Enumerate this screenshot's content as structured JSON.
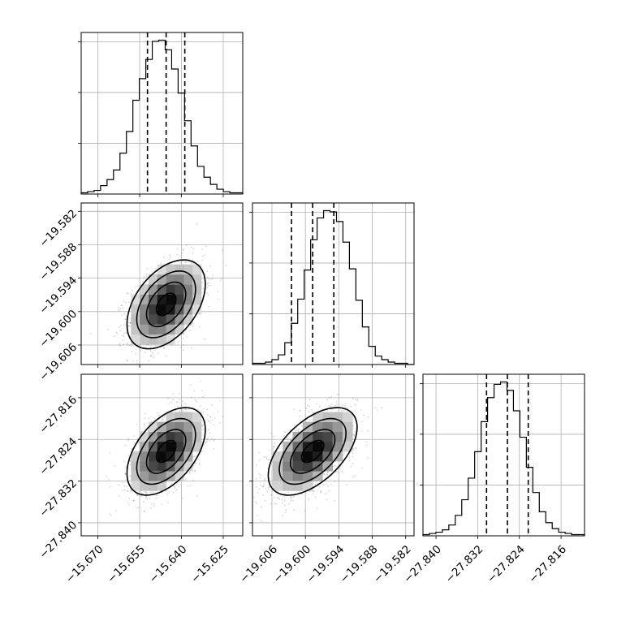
{
  "chart_data": {
    "type": "corner",
    "description_of_layout": "3x3 lower-triangular corner plot",
    "grid": true,
    "parameters": [
      {
        "index": 0,
        "center": -15.6455,
        "sigma": 0.0067,
        "range": [
          -15.676,
          -15.618
        ],
        "ticks": [
          -15.67,
          -15.655,
          -15.64,
          -15.625
        ]
      },
      {
        "index": 1,
        "center": -19.5987,
        "sigma": 0.0038,
        "range": [
          -19.6095,
          -19.5805
        ],
        "ticks": [
          -19.606,
          -19.6,
          -19.594,
          -19.588,
          -19.582
        ]
      },
      {
        "index": 2,
        "center": -27.8263,
        "sigma": 0.004,
        "range": [
          -27.8425,
          -27.8115
        ],
        "ticks": [
          -27.84,
          -27.832,
          -27.824,
          -27.816
        ]
      }
    ],
    "correlations": {
      "0-1": 0.45,
      "0-2": 0.5,
      "1-2": 0.55
    },
    "quantiles": [
      0.16,
      0.5,
      0.84
    ],
    "histograms": [
      {
        "param": 0,
        "bins": 25,
        "counts": [
          1,
          2,
          3,
          7,
          12,
          20,
          34,
          52,
          78,
          96,
          112,
          127,
          128,
          120,
          104,
          84,
          61,
          40,
          23,
          14,
          8,
          4,
          2,
          1,
          1
        ]
      },
      {
        "param": 1,
        "bins": 25,
        "counts": [
          1,
          1,
          2,
          4,
          8,
          18,
          34,
          54,
          78,
          103,
          121,
          127,
          126,
          118,
          101,
          79,
          53,
          31,
          15,
          7,
          4,
          2,
          1,
          1,
          0
        ]
      },
      {
        "param": 2,
        "bins": 25,
        "counts": [
          1,
          2,
          3,
          5,
          9,
          17,
          30,
          48,
          70,
          95,
          115,
          126,
          128,
          121,
          104,
          82,
          57,
          36,
          20,
          11,
          6,
          3,
          2,
          1,
          1
        ]
      }
    ],
    "x_tick_labels": {
      "col0": [
        "−15.670",
        "−15.655",
        "−15.640",
        "−15.625"
      ],
      "col1": [
        "−19.606",
        "−19.600",
        "−19.594",
        "−19.588",
        "−19.582"
      ],
      "col2": [
        "−27.840",
        "−27.832",
        "−27.824",
        "−27.816"
      ]
    },
    "y_tick_labels": {
      "row1": [
        "−19.582",
        "−19.588",
        "−19.594",
        "−19.600",
        "−19.606"
      ],
      "row2": [
        "−27.816",
        "−27.824",
        "−27.832",
        "−27.840"
      ]
    }
  }
}
